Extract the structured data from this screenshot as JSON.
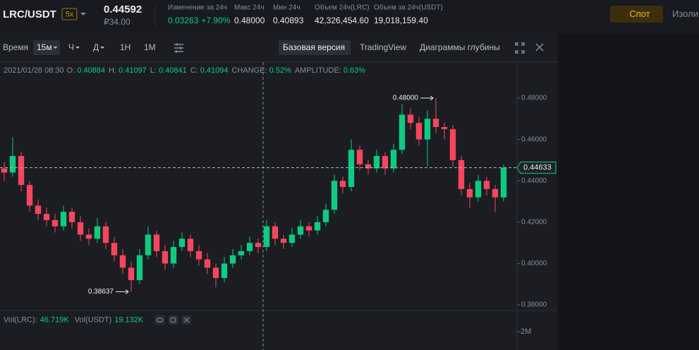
{
  "header": {
    "pair": "LRC/USDT",
    "leverage": "5x",
    "price": "0.44592",
    "price_local": "₽34.00",
    "stats": [
      {
        "label": "Изменение за 24ч",
        "value": "0.03263",
        "extra": "+7.90%"
      },
      {
        "label": "Макс 24ч",
        "value": "0.48000"
      },
      {
        "label": "Мин 24ч",
        "value": "0.40893"
      },
      {
        "label": "Объем 24ч(LRC)",
        "value": "42,326,454.60"
      },
      {
        "label": "Объем за 24ч(USDT)",
        "value": "19,018,159.40"
      }
    ]
  },
  "tabs": [
    "Спот",
    "Изоли"
  ],
  "toolbar": {
    "intervals": [
      "Время",
      "15м",
      "Ч",
      "Д",
      "1Н",
      "1М"
    ],
    "views": [
      "Базовая версия",
      "TradingView",
      "Диаграммы глубины"
    ]
  },
  "chart_data": {
    "type": "candlestick",
    "info": {
      "date": "2021/01/28 08:30",
      "fields": [
        {
          "label": "O:",
          "value": "0.40884"
        },
        {
          "label": "H:",
          "value": "0.41097"
        },
        {
          "label": "L:",
          "value": "0.40841"
        },
        {
          "label": "C:",
          "value": "0.41094"
        },
        {
          "label": "CHANGE:",
          "value": "0.52%"
        },
        {
          "label": "AMPLITUDE:",
          "value": "0.63%"
        }
      ]
    },
    "candles": [
      [
        0.446,
        0.449,
        0.44,
        0.444
      ],
      [
        0.444,
        0.461,
        0.442,
        0.452
      ],
      [
        0.452,
        0.454,
        0.435,
        0.438
      ],
      [
        0.438,
        0.44,
        0.425,
        0.428
      ],
      [
        0.428,
        0.431,
        0.421,
        0.424
      ],
      [
        0.424,
        0.427,
        0.418,
        0.421
      ],
      [
        0.421,
        0.424,
        0.415,
        0.418
      ],
      [
        0.418,
        0.428,
        0.416,
        0.425
      ],
      [
        0.425,
        0.427,
        0.417,
        0.42
      ],
      [
        0.42,
        0.423,
        0.411,
        0.414
      ],
      [
        0.414,
        0.417,
        0.409,
        0.412
      ],
      [
        0.412,
        0.422,
        0.41,
        0.418
      ],
      [
        0.418,
        0.42,
        0.407,
        0.41
      ],
      [
        0.41,
        0.413,
        0.401,
        0.404
      ],
      [
        0.404,
        0.407,
        0.395,
        0.398
      ],
      [
        0.398,
        0.401,
        0.38637,
        0.392
      ],
      [
        0.392,
        0.407,
        0.39,
        0.404
      ],
      [
        0.404,
        0.418,
        0.402,
        0.414
      ],
      [
        0.414,
        0.416,
        0.403,
        0.406
      ],
      [
        0.406,
        0.409,
        0.397,
        0.4
      ],
      [
        0.4,
        0.411,
        0.398,
        0.408
      ],
      [
        0.408,
        0.415,
        0.406,
        0.412
      ],
      [
        0.412,
        0.414,
        0.403,
        0.406
      ],
      [
        0.406,
        0.409,
        0.399,
        0.402
      ],
      [
        0.402,
        0.405,
        0.395,
        0.398
      ],
      [
        0.398,
        0.4,
        0.3885,
        0.393
      ],
      [
        0.393,
        0.403,
        0.391,
        0.4
      ],
      [
        0.4,
        0.407,
        0.398,
        0.404
      ],
      [
        0.404,
        0.409,
        0.402,
        0.406
      ],
      [
        0.406,
        0.413,
        0.404,
        0.41
      ],
      [
        0.41,
        0.412,
        0.405,
        0.408
      ],
      [
        0.408,
        0.421,
        0.406,
        0.418
      ],
      [
        0.418,
        0.42,
        0.409,
        0.412
      ],
      [
        0.412,
        0.414,
        0.407,
        0.41
      ],
      [
        0.41,
        0.417,
        0.408,
        0.414
      ],
      [
        0.414,
        0.421,
        0.412,
        0.418
      ],
      [
        0.418,
        0.42,
        0.413,
        0.416
      ],
      [
        0.416,
        0.423,
        0.414,
        0.42
      ],
      [
        0.42,
        0.429,
        0.418,
        0.426
      ],
      [
        0.426,
        0.443,
        0.424,
        0.44
      ],
      [
        0.44,
        0.442,
        0.434,
        0.437
      ],
      [
        0.437,
        0.46,
        0.435,
        0.455
      ],
      [
        0.455,
        0.457,
        0.445,
        0.448
      ],
      [
        0.448,
        0.45,
        0.443,
        0.446
      ],
      [
        0.446,
        0.455,
        0.444,
        0.452
      ],
      [
        0.452,
        0.454,
        0.443,
        0.446
      ],
      [
        0.446,
        0.458,
        0.444,
        0.455
      ],
      [
        0.455,
        0.477,
        0.453,
        0.472
      ],
      [
        0.472,
        0.475,
        0.465,
        0.468
      ],
      [
        0.468,
        0.471,
        0.457,
        0.46
      ],
      [
        0.46,
        0.474,
        0.447,
        0.47
      ],
      [
        0.47,
        0.48,
        0.463,
        0.466
      ],
      [
        0.466,
        0.468,
        0.46,
        0.465
      ],
      [
        0.465,
        0.467,
        0.447,
        0.45
      ],
      [
        0.45,
        0.452,
        0.433,
        0.436
      ],
      [
        0.436,
        0.439,
        0.427,
        0.432
      ],
      [
        0.432,
        0.443,
        0.43,
        0.44
      ],
      [
        0.44,
        0.442,
        0.433,
        0.436
      ],
      [
        0.436,
        0.438,
        0.425,
        0.432
      ],
      [
        0.432,
        0.448,
        0.43,
        0.44633
      ]
    ],
    "up_color": "#0ecb81",
    "down_color": "#f6465d",
    "ylim": [
      0.3773,
      0.4974
    ],
    "yticks": [
      {
        "value": 0.48,
        "label": "0.48000"
      },
      {
        "value": 0.46,
        "label": "0.46000"
      },
      {
        "value": 0.44,
        "label": "0.44000"
      },
      {
        "value": 0.42,
        "label": "0.42000"
      },
      {
        "value": 0.4,
        "label": "0.40000"
      },
      {
        "value": 0.38,
        "label": "0.38000"
      }
    ],
    "max_marker": {
      "value": 0.48,
      "label": "0.48000"
    },
    "min_marker": {
      "value": 0.38637,
      "label": "0.38637"
    },
    "last_price": {
      "value": 0.44633,
      "label": "0.44633"
    }
  },
  "volume": {
    "fields": [
      {
        "label": "Vol(LRC):",
        "value": "46.719K"
      },
      {
        "label": "Vol(USDT)",
        "value": "19.132K"
      }
    ],
    "axis_label": "2M"
  }
}
